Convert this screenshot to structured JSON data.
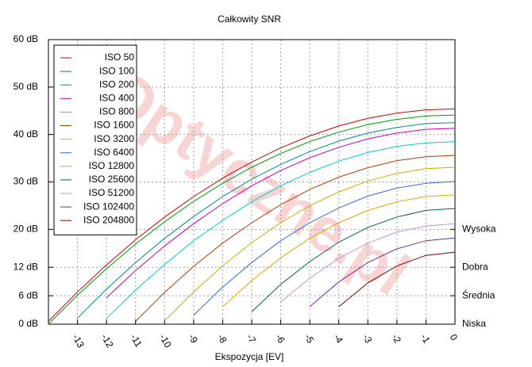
{
  "chart_data": {
    "type": "line",
    "title": "Całkowity SNR",
    "x_label": "Ekspozycja [EV]",
    "watermark": "Optyczne.pl",
    "x": [
      -14,
      -13,
      -12,
      -11,
      -10,
      -9,
      -8,
      -7,
      -6,
      -5,
      -4,
      -3,
      -2,
      -1,
      0
    ],
    "xlim": [
      -14,
      0
    ],
    "xticks": [
      -13,
      -12,
      -11,
      -10,
      -9,
      -8,
      -7,
      -6,
      -5,
      -4,
      -3,
      -2,
      -1,
      0
    ],
    "ylim": [
      0,
      60
    ],
    "yticks": [
      {
        "value": 0,
        "label": "0 dB"
      },
      {
        "value": 6,
        "label": "6 dB"
      },
      {
        "value": 12,
        "label": "12 dB"
      },
      {
        "value": 20,
        "label": "20 dB"
      },
      {
        "value": 30,
        "label": "30 dB"
      },
      {
        "value": 40,
        "label": "40 dB"
      },
      {
        "value": 50,
        "label": "50 dB"
      },
      {
        "value": 60,
        "label": "60 dB"
      }
    ],
    "y2lim": [
      0,
      60
    ],
    "y2ticks": [
      {
        "value": 20,
        "label": "Wysoka"
      },
      {
        "value": 12,
        "label": "Dobra"
      },
      {
        "value": 6,
        "label": "Średnia"
      },
      {
        "value": 0,
        "label": "Niska"
      }
    ],
    "grid": true,
    "legend": "top-left",
    "series": [
      {
        "name": "ISO 50",
        "color": "#cc0000",
        "values": [
          0.6,
          6.8,
          12.5,
          17.8,
          22.6,
          26.9,
          30.8,
          34.2,
          37.2,
          39.7,
          41.8,
          43.4,
          44.5,
          45.2,
          45.4
        ]
      },
      {
        "name": "ISO 100",
        "color": "#009900",
        "values": [
          0,
          6.1,
          11.7,
          16.9,
          21.6,
          25.9,
          29.7,
          33.1,
          36.0,
          38.5,
          40.5,
          42.1,
          43.2,
          43.9,
          44.1
        ]
      },
      {
        "name": "ISO 200",
        "color": "#008b8b",
        "values": [
          null,
          1.3,
          7.4,
          13.0,
          18.1,
          22.7,
          26.9,
          30.6,
          33.7,
          36.4,
          38.6,
          40.3,
          41.5,
          42.3,
          42.5
        ]
      },
      {
        "name": "ISO 400",
        "color": "#c000c0",
        "values": [
          null,
          null,
          5.6,
          11.3,
          16.5,
          21.2,
          25.4,
          29.2,
          32.4,
          35.1,
          37.3,
          39.1,
          40.3,
          41.1,
          41.3
        ]
      },
      {
        "name": "ISO 800",
        "color": "#00cccc",
        "values": [
          null,
          null,
          1.2,
          7.2,
          12.6,
          17.6,
          21.9,
          25.8,
          29.2,
          32.0,
          34.4,
          36.2,
          37.5,
          38.2,
          38.5
        ]
      },
      {
        "name": "ISO 1600",
        "color": "#b03c00",
        "values": [
          null,
          null,
          null,
          0.6,
          6.7,
          12.2,
          17.1,
          21.4,
          25.2,
          28.4,
          31.0,
          33.0,
          34.5,
          35.3,
          35.6
        ]
      },
      {
        "name": "ISO 3200",
        "color": "#ccaa00",
        "values": [
          null,
          null,
          null,
          null,
          0.7,
          6.8,
          12.3,
          17.2,
          21.4,
          25.0,
          27.9,
          30.2,
          31.8,
          32.8,
          33.1
        ]
      },
      {
        "name": "ISO 6400",
        "color": "#2f6fd0",
        "values": [
          null,
          null,
          null,
          null,
          null,
          1.9,
          7.8,
          13.0,
          17.6,
          21.4,
          24.5,
          27.0,
          28.7,
          29.7,
          30.1
        ]
      },
      {
        "name": "ISO 12800",
        "color": "#f0a000",
        "values": [
          null,
          null,
          null,
          null,
          null,
          null,
          3.7,
          9.2,
          14.0,
          18.1,
          21.4,
          24.0,
          25.8,
          26.9,
          27.3
        ]
      },
      {
        "name": "ISO 25600",
        "color": "#006050",
        "values": [
          null,
          null,
          null,
          null,
          null,
          null,
          null,
          2.6,
          8.4,
          13.2,
          17.3,
          20.4,
          22.6,
          24.0,
          24.4
        ]
      },
      {
        "name": "ISO 51200",
        "color": "#c090e0",
        "values": [
          null,
          null,
          null,
          null,
          null,
          null,
          null,
          null,
          4.7,
          9.7,
          13.9,
          17.1,
          19.4,
          20.7,
          21.2
        ]
      },
      {
        "name": "ISO 102400",
        "color": "#703090",
        "values": [
          null,
          null,
          null,
          null,
          null,
          null,
          null,
          null,
          null,
          3.7,
          8.9,
          13.0,
          15.9,
          17.6,
          18.2
        ]
      },
      {
        "name": "ISO 204800",
        "color": "#800000",
        "values": [
          null,
          null,
          null,
          null,
          null,
          null,
          null,
          null,
          null,
          null,
          3.7,
          8.7,
          12.3,
          14.5,
          15.2
        ]
      }
    ]
  }
}
